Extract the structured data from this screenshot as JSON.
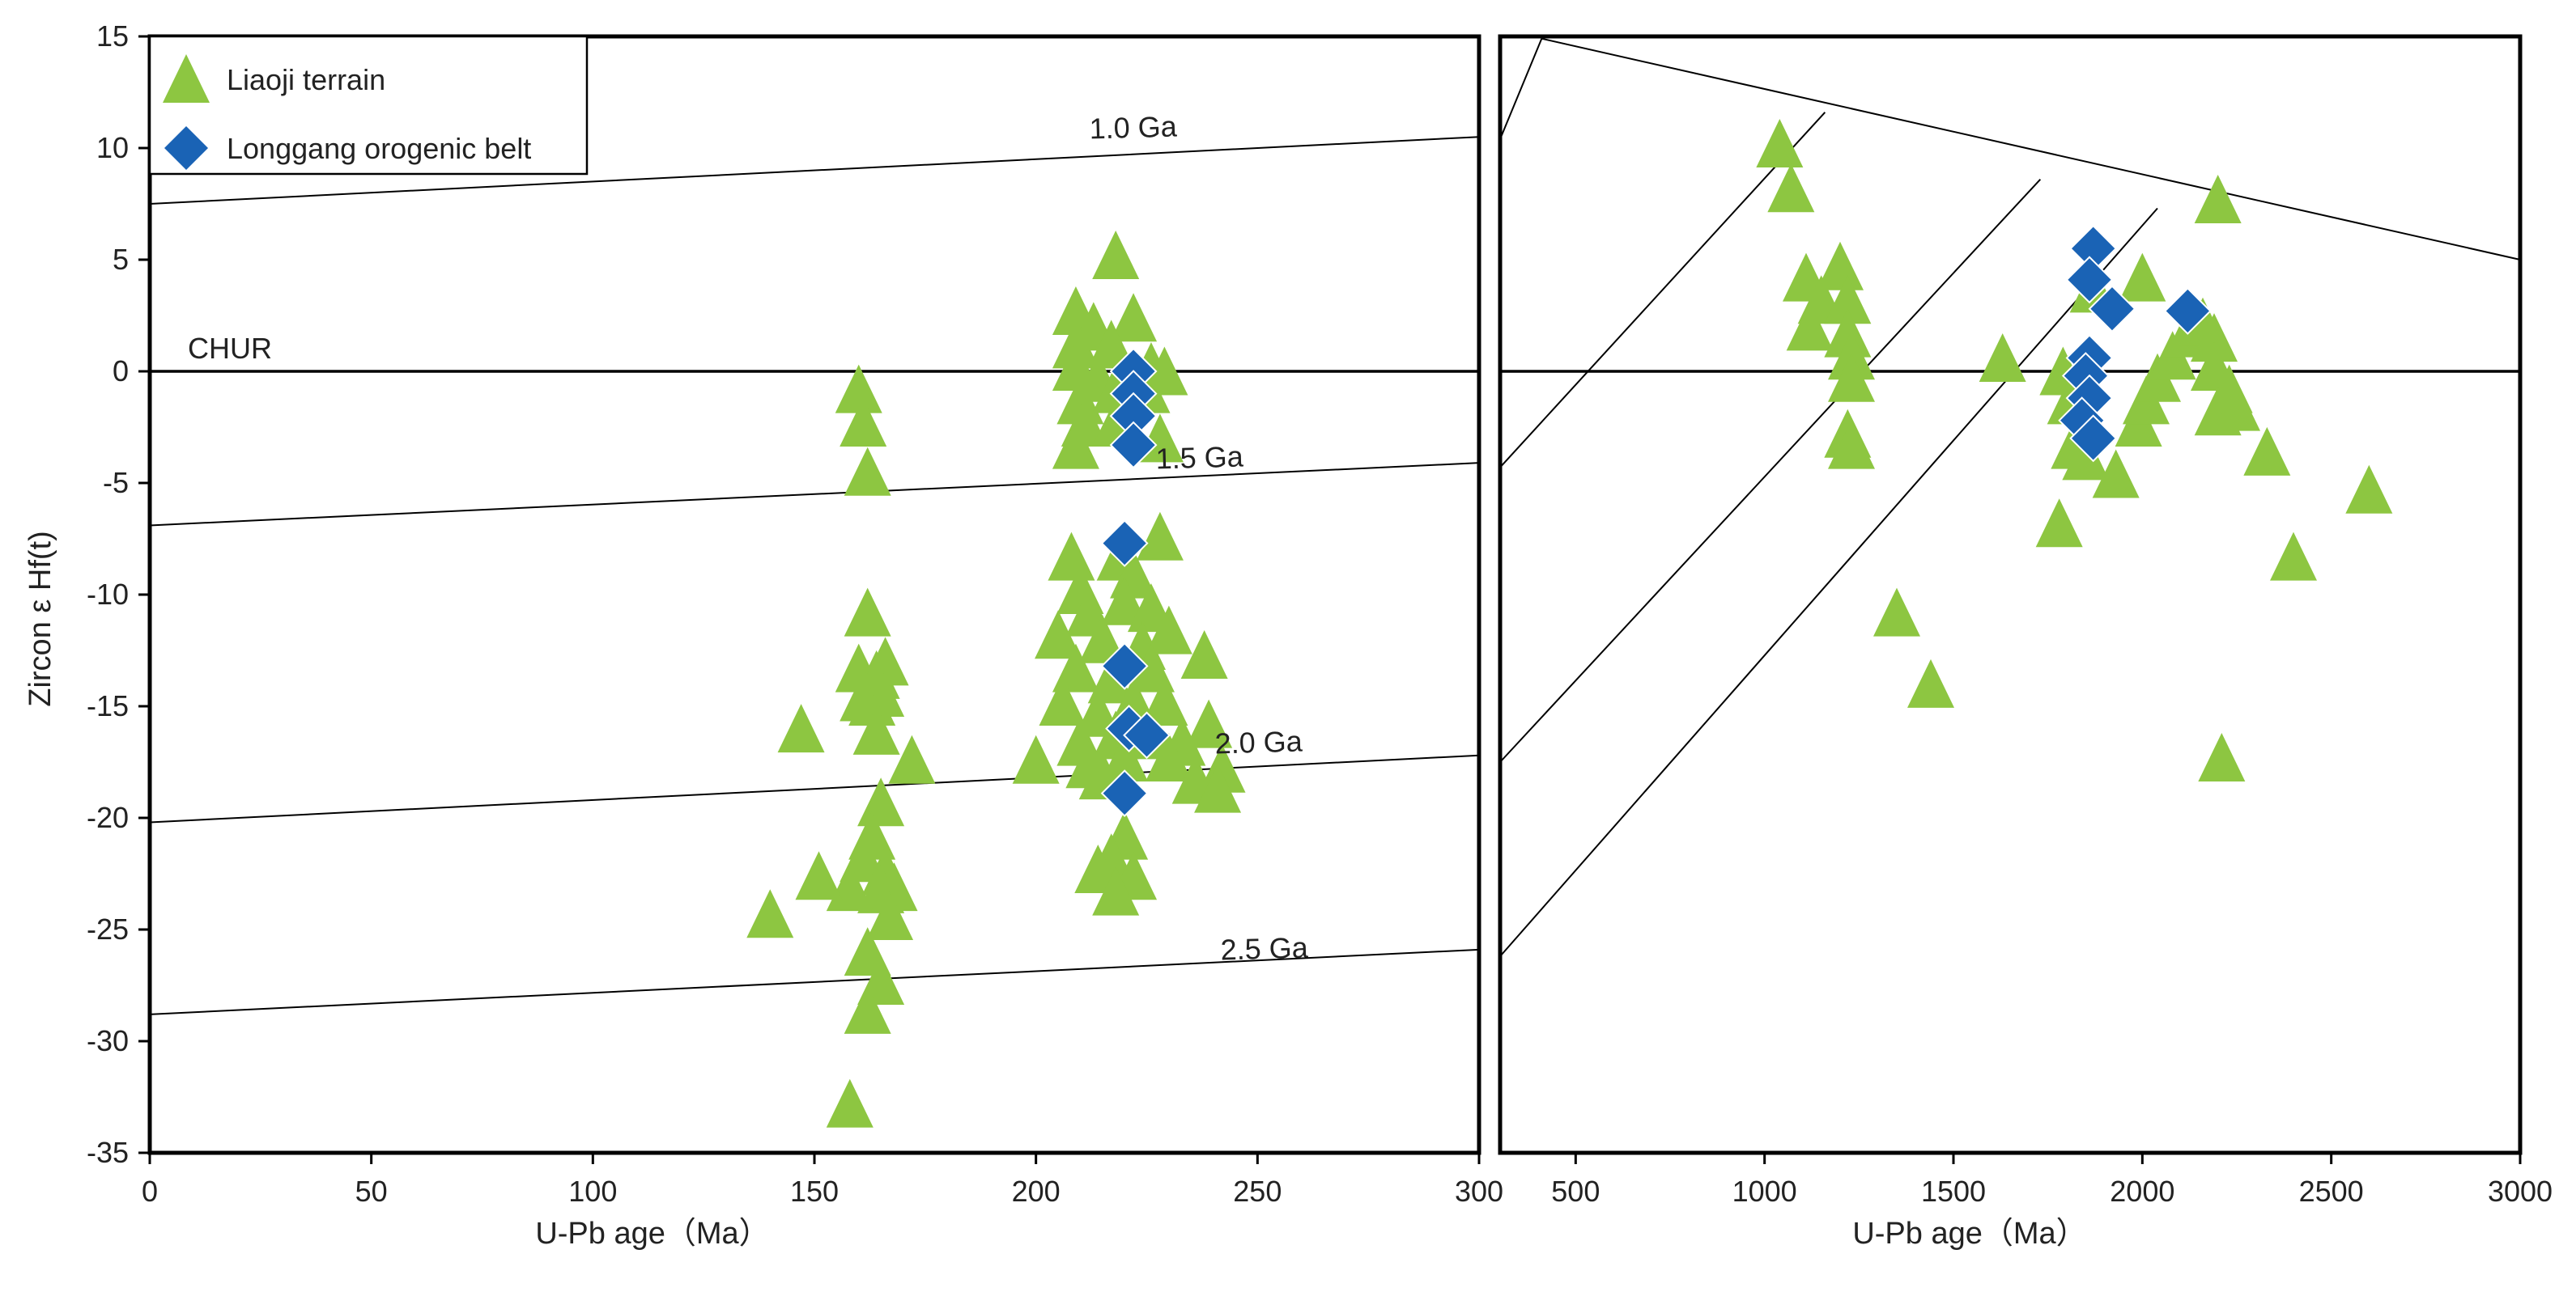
{
  "chart_data": [
    {
      "type": "scatter",
      "xlabel": "U-Pb age（Ma）",
      "ylabel": "Zircon ε Hf(t)",
      "xlim": [
        0,
        300
      ],
      "ylim": [
        -35,
        15
      ],
      "xticks": [
        "0",
        "50",
        "100",
        "150",
        "200",
        "250",
        "300"
      ],
      "yticks": [
        "15",
        "10",
        "5",
        "0",
        "-5",
        "-10",
        "-15",
        "-20",
        "-25",
        "-30",
        "-35"
      ],
      "legend": {
        "placement": "top-left",
        "entries": [
          "Liaoji terrain",
          "Longgang orogenic belt"
        ]
      },
      "reference_lines": [
        {
          "label": "1.0 Ga",
          "y_at_0": 7.5,
          "y_at_300": 10.5
        },
        {
          "label": "CHUR",
          "y_at_0": 0,
          "y_at_300": 0
        },
        {
          "label": "1.5 Ga",
          "y_at_0": -6.9,
          "y_at_300": -4.1
        },
        {
          "label": "2.0 Ga",
          "y_at_0": -20.2,
          "y_at_300": -17.2
        },
        {
          "label": "2.5 Ga",
          "y_at_0": -28.8,
          "y_at_300": -25.9
        }
      ],
      "series": [
        {
          "name": "Liaoji terrain",
          "marker": "triangle",
          "color": "#8dc641",
          "points": [
            [
              160,
              -1
            ],
            [
              161,
              -2.5
            ],
            [
              162,
              -4.7
            ],
            [
              162,
              -11
            ],
            [
              160,
              -13.5
            ],
            [
              164,
              -13.8
            ],
            [
              166,
              -13.2
            ],
            [
              163,
              -15
            ],
            [
              165,
              -14.6
            ],
            [
              161,
              -14.8
            ],
            [
              164,
              -16.3
            ],
            [
              172,
              -17.6
            ],
            [
              147,
              -16.2
            ],
            [
              165,
              -19.5
            ],
            [
              163,
              -21
            ],
            [
              161,
              -22
            ],
            [
              166,
              -22.6
            ],
            [
              158,
              -23.3
            ],
            [
              165,
              -23.4
            ],
            [
              151,
              -22.8
            ],
            [
              168,
              -23.3
            ],
            [
              167,
              -24.6
            ],
            [
              162,
              -26.2
            ],
            [
              165,
              -27.5
            ],
            [
              162,
              -28.8
            ],
            [
              140,
              -24.5
            ],
            [
              158,
              -33
            ],
            [
              218,
              5
            ],
            [
              209,
              2.5
            ],
            [
              213,
              1.8
            ],
            [
              222,
              2.2
            ],
            [
              217,
              1
            ],
            [
              209,
              1
            ],
            [
              214,
              -0.5
            ],
            [
              210,
              -1.5
            ],
            [
              218,
              -1
            ],
            [
              209,
              0
            ],
            [
              225,
              -1
            ],
            [
              211,
              -2.5
            ],
            [
              218,
              -2.5
            ],
            [
              209,
              -3.5
            ],
            [
              228,
              -3.2
            ],
            [
              226,
              0
            ],
            [
              229,
              -0.2
            ],
            [
              208,
              -8.5
            ],
            [
              219,
              -8.5
            ],
            [
              222,
              -9.3
            ],
            [
              228,
              -7.6
            ],
            [
              210,
              -10
            ],
            [
              220,
              -10.5
            ],
            [
              212,
              -11
            ],
            [
              226,
              -10.8
            ],
            [
              205,
              -12
            ],
            [
              215,
              -12.2
            ],
            [
              224,
              -12.5
            ],
            [
              230,
              -11.8
            ],
            [
              209,
              -13.5
            ],
            [
              217,
              -14
            ],
            [
              226,
              -13.5
            ],
            [
              238,
              -12.9
            ],
            [
              206,
              -15
            ],
            [
              214,
              -15.5
            ],
            [
              222,
              -15
            ],
            [
              229,
              -15
            ],
            [
              239,
              -16
            ],
            [
              210,
              -16.8
            ],
            [
              218,
              -16.5
            ],
            [
              226,
              -16.5
            ],
            [
              233,
              -16.8
            ],
            [
              200,
              -17.6
            ],
            [
              212,
              -17.8
            ],
            [
              220,
              -17.5
            ],
            [
              230,
              -17.5
            ],
            [
              242,
              -18
            ],
            [
              236,
              -18.5
            ],
            [
              215,
              -18.3
            ],
            [
              241,
              -18.9
            ],
            [
              220,
              -21
            ],
            [
              217,
              -22
            ],
            [
              214,
              -22.5
            ],
            [
              222,
              -22.8
            ],
            [
              218,
              -23.5
            ]
          ]
        },
        {
          "name": "Longgang orogenic belt",
          "marker": "diamond",
          "color": "#1a63b5",
          "points": [
            [
              222,
              0
            ],
            [
              222,
              -1
            ],
            [
              222,
              -2
            ],
            [
              222,
              -3.3
            ],
            [
              220,
              -7.7
            ],
            [
              220,
              -13.2
            ],
            [
              221,
              -16
            ],
            [
              225,
              -16.3
            ],
            [
              220,
              -18.9
            ]
          ]
        }
      ]
    },
    {
      "type": "scatter",
      "xlabel": "U-Pb age（Ma）",
      "xlim": [
        300,
        3000
      ],
      "ylim": [
        -35,
        15
      ],
      "xticks": [
        "500",
        "1000",
        "1500",
        "2000",
        "2500",
        "3000"
      ],
      "reference_lines": [
        {
          "y_at_300": 0,
          "y_at_3000": 0
        },
        {
          "x1": 300,
          "y1": 10.4,
          "x2": 410,
          "y2": 14.9
        },
        {
          "x1": 410,
          "y1": 14.9,
          "x2": 3000,
          "y2": 5
        },
        {
          "x1": 300,
          "y1": -4.3,
          "x2": 1160,
          "y2": 11.6
        },
        {
          "x1": 300,
          "y1": -17.5,
          "x2": 1730,
          "y2": 8.6
        },
        {
          "x1": 300,
          "y1": -26.2,
          "x2": 2040,
          "y2": 7.3
        }
      ],
      "series": [
        {
          "name": "Liaoji terrain",
          "marker": "triangle",
          "color": "#8dc641",
          "points": [
            [
              1040,
              10
            ],
            [
              1070,
              8
            ],
            [
              1110,
              4
            ],
            [
              1200,
              4.5
            ],
            [
              1150,
              3
            ],
            [
              1220,
              3
            ],
            [
              1120,
              1.8
            ],
            [
              1220,
              1.5
            ],
            [
              1230,
              0.5
            ],
            [
              1230,
              -0.5
            ],
            [
              1220,
              -3
            ],
            [
              1230,
              -3.5
            ],
            [
              1630,
              0.4
            ],
            [
              1790,
              -0.2
            ],
            [
              1810,
              -1.5
            ],
            [
              1820,
              -3.5
            ],
            [
              1850,
              -4
            ],
            [
              1930,
              -4.8
            ],
            [
              1990,
              -2.5
            ],
            [
              2010,
              -1.5
            ],
            [
              2040,
              -0.5
            ],
            [
              2080,
              0.5
            ],
            [
              2120,
              1.5
            ],
            [
              2160,
              2
            ],
            [
              2190,
              1.3
            ],
            [
              2190,
              0
            ],
            [
              2230,
              -1
            ],
            [
              2200,
              -2
            ],
            [
              2250,
              -1.8
            ],
            [
              2000,
              4
            ],
            [
              1870,
              3.5
            ],
            [
              2200,
              7.5
            ],
            [
              1780,
              -7
            ],
            [
              1350,
              -11
            ],
            [
              1440,
              -14.2
            ],
            [
              2330,
              -3.8
            ],
            [
              2400,
              -8.5
            ],
            [
              2600,
              -5.5
            ],
            [
              2210,
              -17.5
            ]
          ]
        },
        {
          "name": "Longgang orogenic belt",
          "marker": "diamond",
          "color": "#1a63b5",
          "points": [
            [
              1870,
              5.5
            ],
            [
              1860,
              4.1
            ],
            [
              1920,
              2.8
            ],
            [
              2120,
              2.7
            ],
            [
              1860,
              0.6
            ],
            [
              1850,
              -0.2
            ],
            [
              1860,
              -1.2
            ],
            [
              1840,
              -2.2
            ],
            [
              1870,
              -3
            ]
          ]
        }
      ]
    }
  ]
}
